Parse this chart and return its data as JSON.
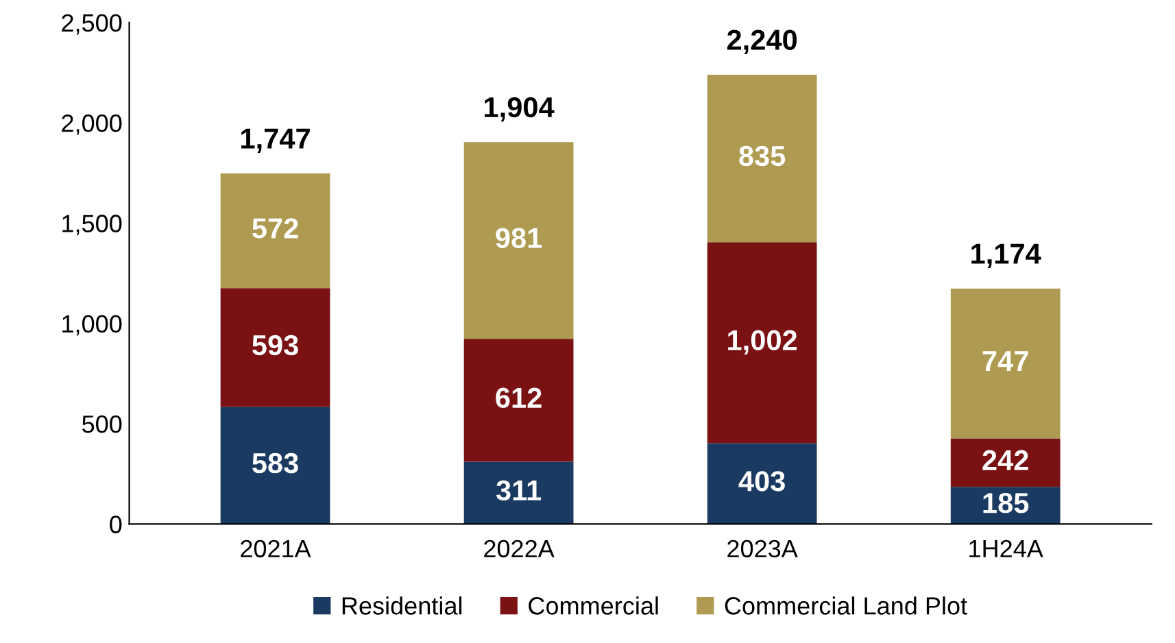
{
  "chart_data": {
    "type": "bar",
    "stacked": true,
    "categories": [
      "2021A",
      "2022A",
      "2023A",
      "1H24A"
    ],
    "series": [
      {
        "name": "Residential",
        "color": "#1b3a61",
        "values": [
          583,
          311,
          403,
          185
        ],
        "value_labels": [
          "583",
          "311",
          "403",
          "185"
        ]
      },
      {
        "name": "Commercial",
        "color": "#7a1214",
        "values": [
          593,
          612,
          1002,
          242
        ],
        "value_labels": [
          "593",
          "612",
          "1,002",
          "242"
        ]
      },
      {
        "name": "Commercial Land Plot",
        "color": "#ae9a50",
        "values": [
          572,
          981,
          835,
          747
        ],
        "value_labels": [
          "572",
          "981",
          "835",
          "747"
        ]
      }
    ],
    "ylim": [
      0,
      2500
    ],
    "yticks": [
      {
        "value": 0,
        "label": "0"
      },
      {
        "value": 500,
        "label": "500"
      },
      {
        "value": 1000,
        "label": "1,000"
      },
      {
        "value": 1500,
        "label": "1,500"
      },
      {
        "value": 2000,
        "label": "2,000"
      },
      {
        "value": 2500,
        "label": "2,500"
      }
    ],
    "totals": [
      "1,747",
      "1,904",
      "2,240",
      "1,174"
    ],
    "grid": false,
    "legend": "bottom"
  }
}
